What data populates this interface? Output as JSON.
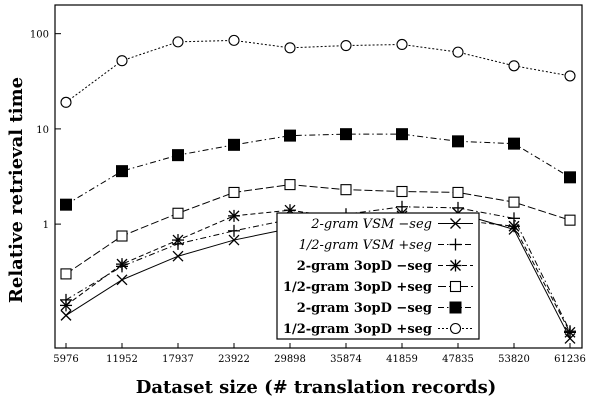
{
  "chart_data": {
    "type": "line",
    "title": "",
    "xlabel": "Dataset size (# translation records)",
    "ylabel": "Relative retrieval time",
    "y_scale": "log",
    "ylim": [
      0.05,
      200
    ],
    "yticks": [
      1,
      10,
      100
    ],
    "grid": "none",
    "legend_position": "bottom-right",
    "categories": [
      "5976",
      "11952",
      "17937",
      "23922",
      "29898",
      "35874",
      "41859",
      "47835",
      "53820",
      "61236"
    ],
    "series": [
      {
        "name": "2-gram VSM −seg",
        "marker": "x",
        "line": "solid",
        "values": [
          0.11,
          0.26,
          0.46,
          0.68,
          0.9,
          1.07,
          1.3,
          1.3,
          0.88,
          0.063
        ]
      },
      {
        "name": "1/2-gram VSM +seg",
        "marker": "plus",
        "line": "dash-dot",
        "values": [
          0.16,
          0.36,
          0.62,
          0.85,
          1.12,
          1.27,
          1.52,
          1.48,
          1.15,
          0.075
        ]
      },
      {
        "name": "2-gram 3opD −seg",
        "marker": "asterisk",
        "line": "dashed",
        "values": [
          0.14,
          0.38,
          0.68,
          1.22,
          1.4,
          1.15,
          1.22,
          1.1,
          0.95,
          0.073
        ]
      },
      {
        "name": "1/2-gram 3opD +seg",
        "marker": "square-open",
        "line": "long-dash",
        "values": [
          0.3,
          0.75,
          1.3,
          2.15,
          2.6,
          2.3,
          2.2,
          2.15,
          1.7,
          1.1
        ]
      },
      {
        "name": "2-gram 3opD −seg",
        "marker": "square-filled",
        "line": "dash-dot",
        "values": [
          1.6,
          3.6,
          5.3,
          6.8,
          8.5,
          8.8,
          8.8,
          7.4,
          7.0,
          3.1
        ]
      },
      {
        "name": "1/2-gram 3opD +seg",
        "marker": "circle-open",
        "line": "dotted",
        "values": [
          19,
          52,
          82,
          85,
          71,
          75,
          77,
          64,
          46,
          36
        ]
      }
    ]
  }
}
